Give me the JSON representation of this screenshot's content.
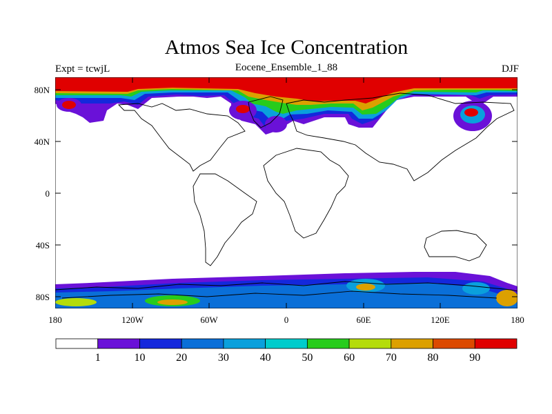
{
  "title": "Atmos Sea Ice Concentration",
  "left_string": "Expt = tcwjL",
  "center_string": "Eocene_Ensemble_1_88",
  "right_string": "DJF",
  "map": {
    "lat_labels": [
      "80N",
      "40N",
      "0",
      "40S",
      "80S"
    ],
    "lon_labels": [
      "180",
      "120W",
      "60W",
      "0",
      "60E",
      "120E",
      "180"
    ]
  },
  "colorbar": {
    "levels": [
      "1",
      "10",
      "20",
      "30",
      "40",
      "50",
      "60",
      "70",
      "80",
      "90"
    ],
    "colors": [
      "#ffffff",
      "#6a11d8",
      "#1428dc",
      "#0a6fd8",
      "#0aa0dc",
      "#00cccc",
      "#27cc1c",
      "#b4dc0a",
      "#dca000",
      "#dc4a00",
      "#e00000"
    ]
  }
}
